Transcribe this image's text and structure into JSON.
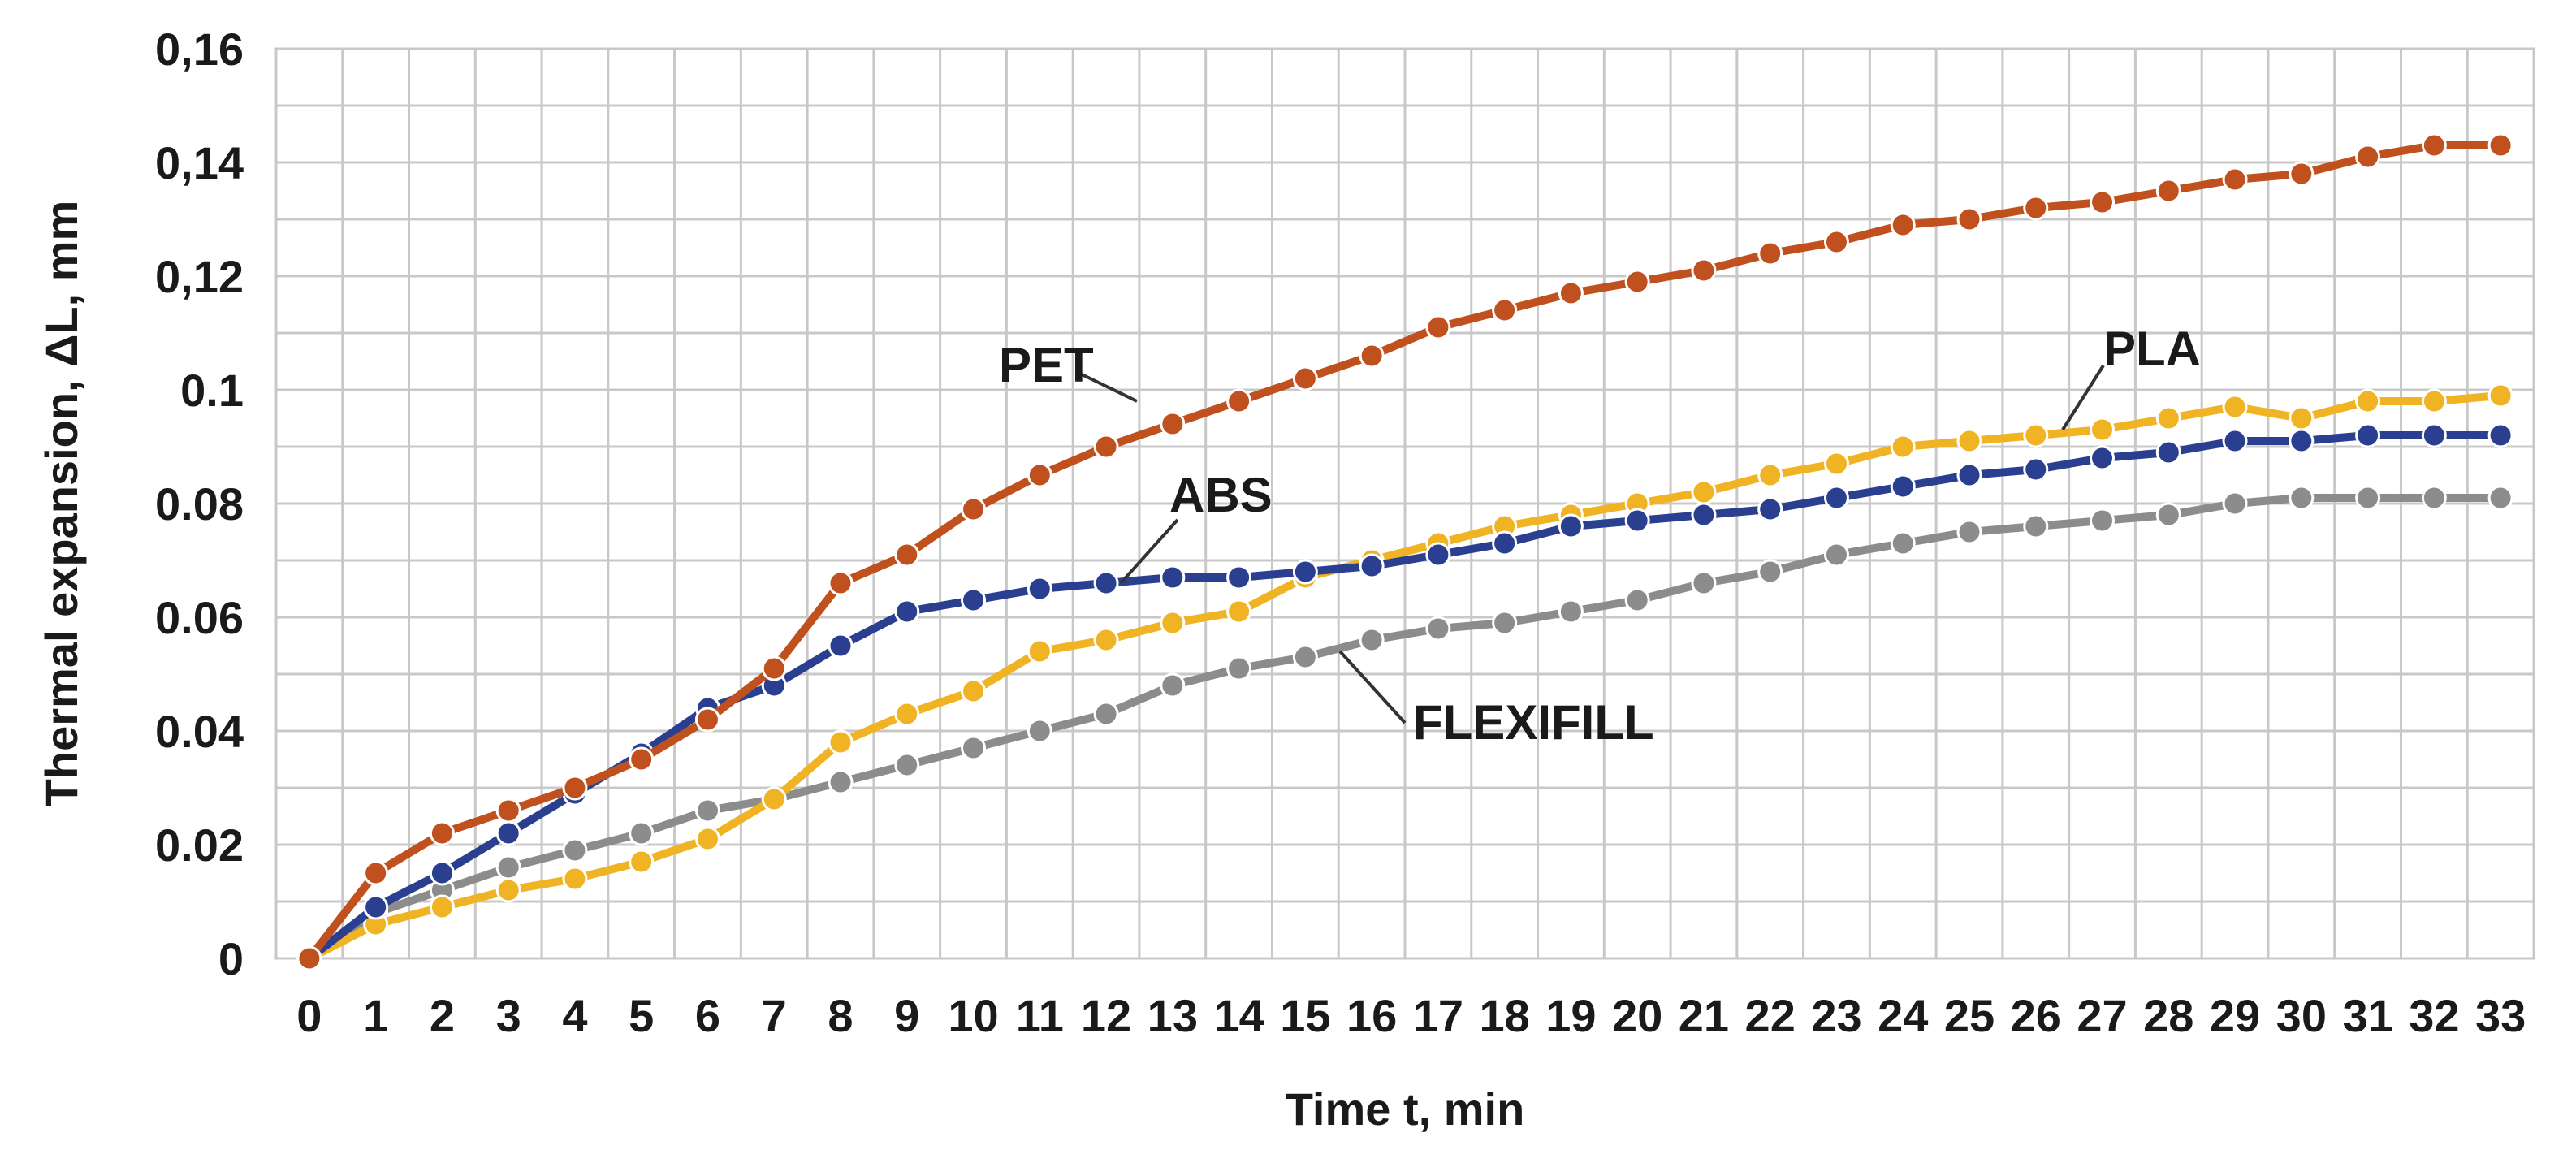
{
  "chart_data": {
    "type": "line",
    "title": "",
    "xlabel": "Time t, min",
    "ylabel": "Thermal expansion, ΔL, mm",
    "xlim": [
      0,
      33
    ],
    "ylim": [
      0,
      0.16
    ],
    "grid": true,
    "x": [
      0,
      1,
      2,
      3,
      4,
      5,
      6,
      7,
      8,
      9,
      10,
      11,
      12,
      13,
      14,
      15,
      16,
      17,
      18,
      19,
      20,
      21,
      22,
      23,
      24,
      25,
      26,
      27,
      28,
      29,
      30,
      31,
      32,
      33
    ],
    "x_ticks": [
      "0",
      "1",
      "2",
      "3",
      "4",
      "5",
      "6",
      "7",
      "8",
      "9",
      "10",
      "11",
      "12",
      "13",
      "14",
      "15",
      "16",
      "17",
      "18",
      "19",
      "20",
      "21",
      "22",
      "23",
      "24",
      "25",
      "26",
      "27",
      "28",
      "29",
      "30",
      "31",
      "32",
      "33"
    ],
    "y_ticks": [
      {
        "value": 0,
        "label": "0"
      },
      {
        "value": 0.02,
        "label": "0.02"
      },
      {
        "value": 0.04,
        "label": "0.04"
      },
      {
        "value": 0.06,
        "label": "0.06"
      },
      {
        "value": 0.08,
        "label": "0.08"
      },
      {
        "value": 0.1,
        "label": "0.1"
      },
      {
        "value": 0.12,
        "label": "0,12"
      },
      {
        "value": 0.14,
        "label": "0,14"
      },
      {
        "value": 0.16,
        "label": "0,16"
      }
    ],
    "series": [
      {
        "name": "PET",
        "color": "#c0501e",
        "values": [
          0,
          0.015,
          0.022,
          0.026,
          0.03,
          0.035,
          0.042,
          0.051,
          0.066,
          0.071,
          0.079,
          0.085,
          0.09,
          0.094,
          0.098,
          0.102,
          0.106,
          0.111,
          0.114,
          0.117,
          0.119,
          0.121,
          0.124,
          0.126,
          0.129,
          0.13,
          0.132,
          0.133,
          0.135,
          0.137,
          0.138,
          0.141,
          0.143,
          0.143
        ]
      },
      {
        "name": "ABS",
        "color": "#2a3f8f",
        "values": [
          0,
          0.009,
          0.015,
          0.022,
          0.029,
          0.036,
          0.044,
          0.048,
          0.055,
          0.061,
          0.063,
          0.065,
          0.066,
          0.067,
          0.067,
          0.068,
          0.069,
          0.071,
          0.073,
          0.076,
          0.077,
          0.078,
          0.079,
          0.081,
          0.083,
          0.085,
          0.086,
          0.088,
          0.089,
          0.091,
          0.091,
          0.092,
          0.092,
          0.092
        ]
      },
      {
        "name": "PLA",
        "color": "#f0b323",
        "values": [
          0,
          0.006,
          0.009,
          0.012,
          0.014,
          0.017,
          0.021,
          0.028,
          0.038,
          0.043,
          0.047,
          0.054,
          0.056,
          0.059,
          0.061,
          0.067,
          0.07,
          0.073,
          0.076,
          0.078,
          0.08,
          0.082,
          0.085,
          0.087,
          0.09,
          0.091,
          0.092,
          0.093,
          0.095,
          0.097,
          0.095,
          0.098,
          0.098,
          0.099
        ]
      },
      {
        "name": "FLEXIFILL",
        "color": "#8c8c8c",
        "values": [
          0,
          0.008,
          0.012,
          0.016,
          0.019,
          0.022,
          0.026,
          0.028,
          0.031,
          0.034,
          0.037,
          0.04,
          0.043,
          0.048,
          0.051,
          0.053,
          0.056,
          0.058,
          0.059,
          0.061,
          0.063,
          0.066,
          0.068,
          0.071,
          0.073,
          0.075,
          0.076,
          0.077,
          0.078,
          0.08,
          0.081,
          0.081,
          0.081,
          0.081
        ]
      }
    ],
    "annotations": [
      {
        "text": "PET",
        "series": "PET"
      },
      {
        "text": "ABS",
        "series": "ABS"
      },
      {
        "text": "PLA",
        "series": "PLA"
      },
      {
        "text": "FLEXIFILL",
        "series": "FLEXIFILL"
      }
    ]
  }
}
